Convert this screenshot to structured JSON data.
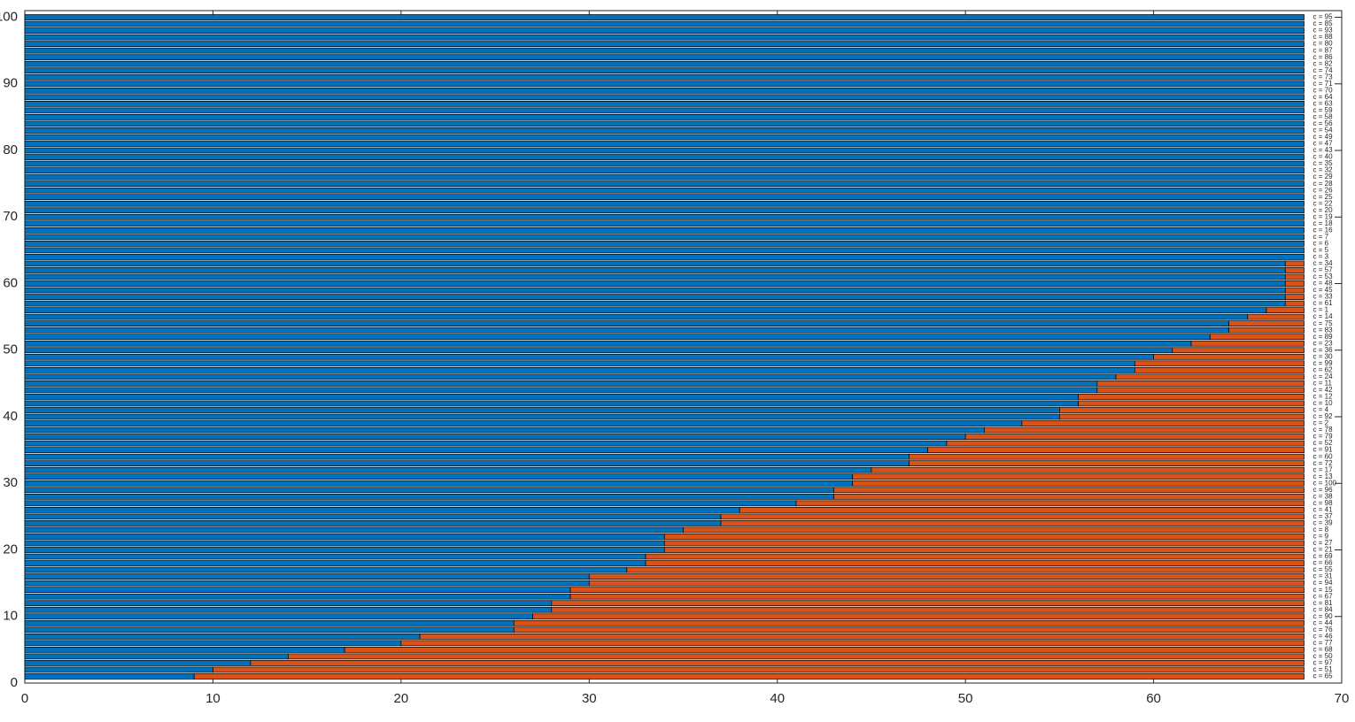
{
  "chart_data": {
    "type": "stacked_barh",
    "y": [
      1,
      2,
      3,
      4,
      5,
      6,
      7,
      8,
      9,
      10,
      11,
      12,
      13,
      14,
      15,
      16,
      17,
      18,
      19,
      20,
      21,
      22,
      23,
      24,
      25,
      26,
      27,
      28,
      29,
      30,
      31,
      32,
      33,
      34,
      35,
      36,
      37,
      38,
      39,
      40,
      41,
      42,
      43,
      44,
      45,
      46,
      47,
      48,
      49,
      50,
      51,
      52,
      53,
      54,
      55,
      56,
      57,
      58,
      59,
      60,
      61,
      62,
      63,
      64,
      65,
      66,
      67,
      68,
      69,
      70,
      71,
      72,
      73,
      74,
      75,
      76,
      77,
      78,
      79,
      80,
      81,
      82,
      83,
      84,
      85,
      86,
      87,
      88,
      89,
      90,
      91,
      92,
      93,
      94,
      95,
      96,
      97,
      98,
      99,
      100
    ],
    "bar_labels": [
      "c = 65",
      "c = 51",
      "c = 97",
      "c = 50",
      "c = 68",
      "c = 77",
      "c = 46",
      "c = 76",
      "c = 44",
      "c = 90",
      "c = 84",
      "c = 81",
      "c = 67",
      "c = 15",
      "c = 94",
      "c = 31",
      "c = 55",
      "c = 66",
      "c = 69",
      "c = 21",
      "c = 27",
      "c = 9",
      "c = 8",
      "c = 39",
      "c = 37",
      "c = 41",
      "c = 98",
      "c = 38",
      "c = 96",
      "c = 100",
      "c = 13",
      "c = 17",
      "c = 72",
      "c = 60",
      "c = 91",
      "c = 52",
      "c = 79",
      "c = 78",
      "c = 2",
      "c = 92",
      "c = 4",
      "c = 10",
      "c = 12",
      "c = 42",
      "c = 11",
      "c = 24",
      "c = 62",
      "c = 99",
      "c = 30",
      "c = 36",
      "c = 23",
      "c = 89",
      "c = 83",
      "c = 75",
      "c = 14",
      "c = 1",
      "c = 61",
      "c = 33",
      "c = 45",
      "c = 48",
      "c = 53",
      "c = 57",
      "c = 34",
      "c = 3",
      "c = 5",
      "c = 6",
      "c = 7",
      "c = 16",
      "c = 18",
      "c = 19",
      "c = 20",
      "c = 22",
      "c = 25",
      "c = 26",
      "c = 28",
      "c = 29",
      "c = 32",
      "c = 35",
      "c = 40",
      "c = 43",
      "c = 47",
      "c = 49",
      "c = 54",
      "c = 56",
      "c = 58",
      "c = 59",
      "c = 63",
      "c = 64",
      "c = 70",
      "c = 71",
      "c = 73",
      "c = 74",
      "c = 82",
      "c = 86",
      "c = 87",
      "c = 80",
      "c = 88",
      "c = 93",
      "c = 85",
      "c = 95"
    ],
    "series": [
      {
        "color": "#0072BD",
        "values": [
          9,
          10,
          12,
          14,
          17,
          20,
          21,
          26,
          26,
          27,
          28,
          28,
          29,
          29,
          30,
          30,
          32,
          33,
          33,
          34,
          34,
          34,
          35,
          37,
          37,
          38,
          41,
          43,
          43,
          44,
          44,
          45,
          47,
          47,
          48,
          49,
          50,
          51,
          53,
          55,
          55,
          56,
          56,
          57,
          57,
          58,
          59,
          59,
          60,
          61,
          62,
          63,
          64,
          64,
          65,
          66,
          67,
          67,
          67,
          67,
          67,
          67,
          67,
          68,
          68,
          68,
          68,
          68,
          68,
          68,
          68,
          68,
          68,
          68,
          68,
          68,
          68,
          68,
          68,
          68,
          68,
          68,
          68,
          68,
          68,
          68,
          68,
          68,
          68,
          68,
          68,
          68,
          68,
          68,
          68,
          68,
          68,
          68,
          68,
          68
        ]
      },
      {
        "color": "#D95319",
        "values": [
          59,
          58,
          56,
          54,
          51,
          48,
          47,
          42,
          42,
          41,
          40,
          40,
          39,
          39,
          38,
          38,
          36,
          35,
          35,
          34,
          34,
          34,
          33,
          31,
          31,
          30,
          27,
          25,
          25,
          24,
          24,
          23,
          21,
          21,
          20,
          19,
          18,
          17,
          15,
          13,
          13,
          12,
          12,
          11,
          11,
          10,
          9,
          9,
          8,
          7,
          6,
          5,
          4,
          4,
          3,
          2,
          1,
          1,
          1,
          1,
          1,
          1,
          1,
          0,
          0,
          0,
          0,
          0,
          0,
          0,
          0,
          0,
          0,
          0,
          0,
          0,
          0,
          0,
          0,
          0,
          0,
          0,
          0,
          0,
          0,
          0,
          0,
          0,
          0,
          0,
          0,
          0,
          0,
          0,
          0,
          0,
          0,
          0,
          0,
          0
        ]
      }
    ],
    "xlim": [
      0,
      70
    ],
    "xticks": [
      0,
      10,
      20,
      30,
      40,
      50,
      60,
      70
    ],
    "ylim": [
      0,
      101
    ],
    "yticks": [
      0,
      10,
      20,
      30,
      40,
      50,
      60,
      70,
      80,
      90,
      100
    ]
  }
}
